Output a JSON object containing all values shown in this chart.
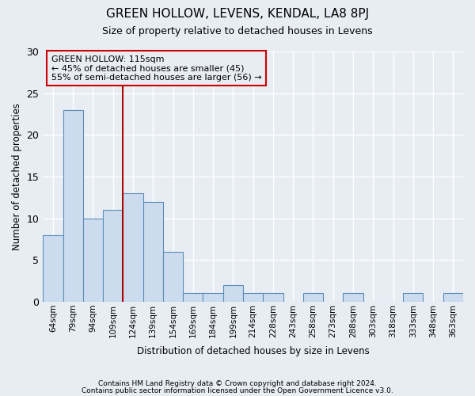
{
  "title": "GREEN HOLLOW, LEVENS, KENDAL, LA8 8PJ",
  "subtitle": "Size of property relative to detached houses in Levens",
  "xlabel": "Distribution of detached houses by size in Levens",
  "ylabel": "Number of detached properties",
  "categories": [
    "64sqm",
    "79sqm",
    "94sqm",
    "109sqm",
    "124sqm",
    "139sqm",
    "154sqm",
    "169sqm",
    "184sqm",
    "199sqm",
    "214sqm",
    "228sqm",
    "243sqm",
    "258sqm",
    "273sqm",
    "288sqm",
    "303sqm",
    "318sqm",
    "333sqm",
    "348sqm",
    "363sqm"
  ],
  "values": [
    8,
    23,
    10,
    11,
    13,
    12,
    6,
    1,
    1,
    2,
    1,
    1,
    0,
    1,
    0,
    1,
    0,
    0,
    1,
    0,
    1
  ],
  "bar_color": "#ccdcee",
  "bar_edge_color": "#5b8db8",
  "bg_color": "#e8edf4",
  "grid_color": "#ffffff",
  "vline_x": 3.5,
  "vline_color": "#aa0000",
  "annotation_text": "GREEN HOLLOW: 115sqm\n← 45% of detached houses are smaller (45)\n55% of semi-detached houses are larger (56) →",
  "annotation_box_color": "#cc0000",
  "ylim": [
    0,
    30
  ],
  "yticks": [
    0,
    5,
    10,
    15,
    20,
    25,
    30
  ],
  "footer1": "Contains HM Land Registry data © Crown copyright and database right 2024.",
  "footer2": "Contains public sector information licensed under the Open Government Licence v3.0."
}
